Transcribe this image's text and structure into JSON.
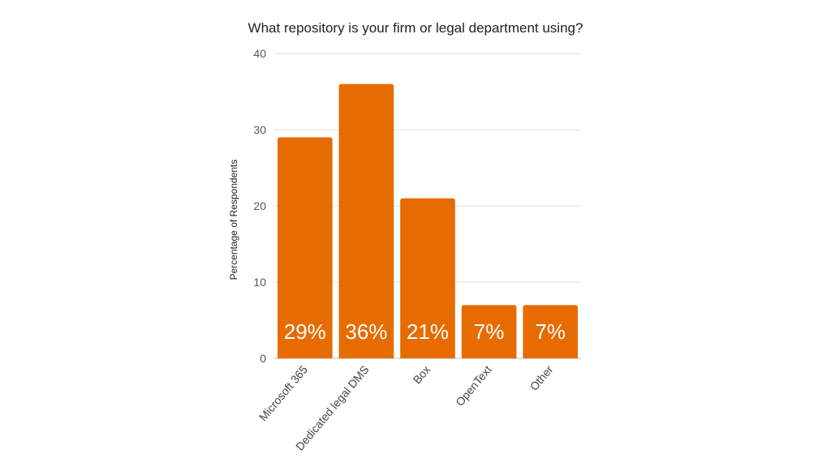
{
  "chart_data": {
    "type": "bar",
    "title": "What repository is your firm or legal department using?",
    "xlabel": "",
    "ylabel": "Percentage of Respondents",
    "categories": [
      "Microsoft 365",
      "Dedicated legal DMS",
      "Box",
      "OpenText",
      "Other"
    ],
    "values": [
      29,
      36,
      21,
      7,
      7
    ],
    "data_labels": [
      "29%",
      "36%",
      "21%",
      "7%",
      "7%"
    ],
    "ylim": [
      0,
      40
    ],
    "yticks": [
      0,
      10,
      20,
      30,
      40
    ],
    "ytick_labels": [
      "0",
      "10",
      "20",
      "30",
      "40"
    ],
    "grid": true,
    "legend": "none",
    "bar_color": "#E66B00"
  }
}
